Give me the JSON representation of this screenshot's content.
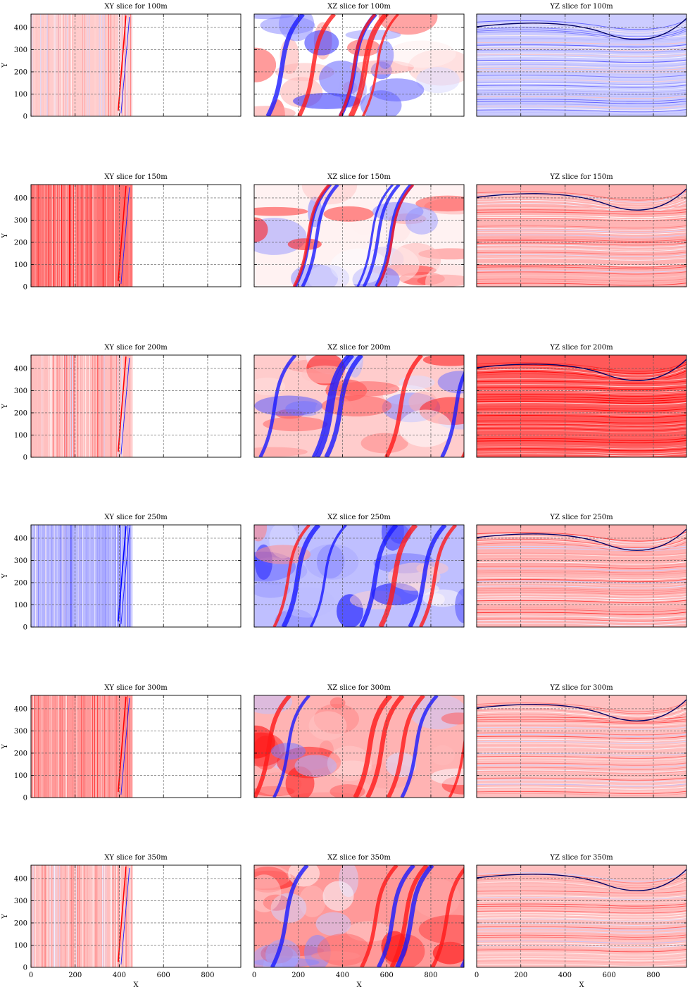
{
  "chart_data": {
    "type": "heatmap",
    "grid": {
      "rows": 6,
      "cols": 3,
      "gridlines": true,
      "gridline_style": "dashed"
    },
    "colormap": {
      "name": "seismic",
      "low": "#0000ff",
      "mid": "#ffffff",
      "high": "#ff0000"
    },
    "x_axis": {
      "label": "X",
      "range": [
        0,
        950
      ],
      "ticks": [
        "0",
        "200",
        "400",
        "600",
        "800"
      ]
    },
    "y_axis": {
      "label": "Y",
      "range": [
        0,
        460
      ],
      "ticks": [
        "0",
        "100",
        "200",
        "300",
        "400"
      ]
    },
    "xy_data_extent_x": [
      0,
      460
    ],
    "panels": [
      {
        "row": 0,
        "col": 0,
        "kind": "XY",
        "title": "XY slice for 100m",
        "tint": 0.2
      },
      {
        "row": 0,
        "col": 1,
        "kind": "XZ",
        "title": "XZ slice for 100m",
        "tint": 0.0
      },
      {
        "row": 0,
        "col": 2,
        "kind": "YZ",
        "title": "YZ slice for 100m",
        "tint": -0.2
      },
      {
        "row": 1,
        "col": 0,
        "kind": "XY",
        "title": "XY slice for 150m",
        "tint": 0.55
      },
      {
        "row": 1,
        "col": 1,
        "kind": "XZ",
        "title": "XZ slice for 150m",
        "tint": 0.05
      },
      {
        "row": 1,
        "col": 2,
        "kind": "YZ",
        "title": "YZ slice for 150m",
        "tint": 0.3
      },
      {
        "row": 2,
        "col": 0,
        "kind": "XY",
        "title": "XY slice for 200m",
        "tint": 0.25
      },
      {
        "row": 2,
        "col": 1,
        "kind": "XZ",
        "title": "XZ slice for 200m",
        "tint": 0.2
      },
      {
        "row": 2,
        "col": 2,
        "kind": "YZ",
        "title": "YZ slice for 200m",
        "tint": 0.65
      },
      {
        "row": 3,
        "col": 0,
        "kind": "XY",
        "title": "XY slice for 250m",
        "tint": -0.3
      },
      {
        "row": 3,
        "col": 1,
        "kind": "XZ",
        "title": "XZ slice for 250m",
        "tint": -0.25
      },
      {
        "row": 3,
        "col": 2,
        "kind": "YZ",
        "title": "YZ slice for 250m",
        "tint": 0.3
      },
      {
        "row": 4,
        "col": 0,
        "kind": "XY",
        "title": "XY slice for 300m",
        "tint": 0.4
      },
      {
        "row": 4,
        "col": 1,
        "kind": "XZ",
        "title": "XZ slice for 300m",
        "tint": 0.3
      },
      {
        "row": 4,
        "col": 2,
        "kind": "YZ",
        "title": "YZ slice for 300m",
        "tint": 0.25
      },
      {
        "row": 5,
        "col": 0,
        "kind": "XY",
        "title": "XY slice for 350m",
        "tint": 0.25
      },
      {
        "row": 5,
        "col": 1,
        "kind": "XZ",
        "title": "XZ slice for 350m",
        "tint": 0.4
      },
      {
        "row": 5,
        "col": 2,
        "kind": "YZ",
        "title": "YZ slice for 350m",
        "tint": 0.25
      }
    ]
  }
}
